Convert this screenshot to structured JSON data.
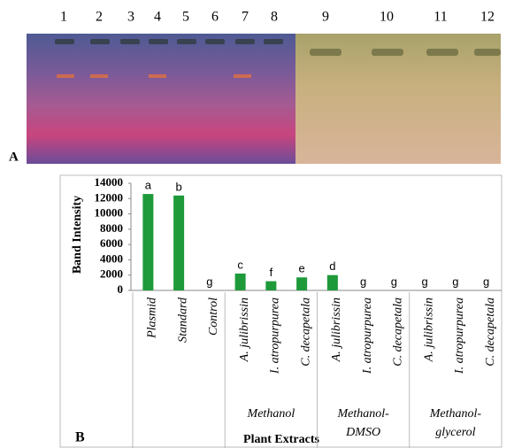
{
  "gel": {
    "panel_label": "A",
    "lanes": [
      "1",
      "2",
      "3",
      "4",
      "5",
      "6",
      "7",
      "8",
      "9",
      "10",
      "11",
      "12"
    ]
  },
  "chart_data": {
    "type": "bar",
    "panel_label": "B",
    "y_label": "Band Intensity",
    "x_label": "Plant Extracts",
    "categories": [
      "Plasmid",
      "Standard",
      "Control",
      "A. julibrissin",
      "I. atropurpurea",
      "C. decapetala",
      "A. julibrissin",
      "I. atropurpurea",
      "C. decapetala",
      "A. julibrissin",
      "I. atropurpurea",
      "C. decapetala"
    ],
    "category_groups": [
      null,
      null,
      null,
      "Methanol",
      "Methanol",
      "Methanol",
      "Methanol-DMSO",
      "Methanol-DMSO",
      "Methanol-DMSO",
      "Methanol-glycerol",
      "Methanol-glycerol",
      "Methanol-glycerol"
    ],
    "values": [
      12600,
      12400,
      0,
      2200,
      1200,
      1700,
      2000,
      0,
      0,
      0,
      0,
      0
    ],
    "significance_letters": [
      "a",
      "b",
      "g",
      "c",
      "f",
      "e",
      "d",
      "g",
      "g",
      "g",
      "g",
      "g"
    ],
    "color": "#1e9a3a",
    "ylim": [
      0,
      14000
    ],
    "yticks": [
      0,
      2000,
      4000,
      6000,
      8000,
      10000,
      12000,
      14000
    ]
  }
}
